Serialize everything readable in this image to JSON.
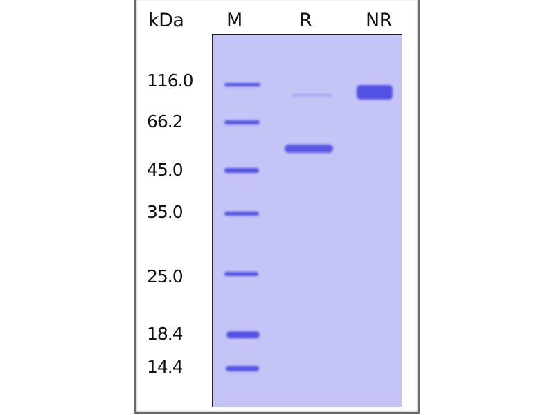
{
  "header": {
    "unit": "kDa",
    "lanes": [
      "M",
      "R",
      "NR"
    ]
  },
  "marker_labels": [
    "116.0",
    "66.2",
    "45.0",
    "35.0",
    "25.0",
    "18.4",
    "14.4"
  ],
  "colors": {
    "gel": "#c4c4f6",
    "band": "#5252e2",
    "frame": "#6a6a6a"
  }
}
